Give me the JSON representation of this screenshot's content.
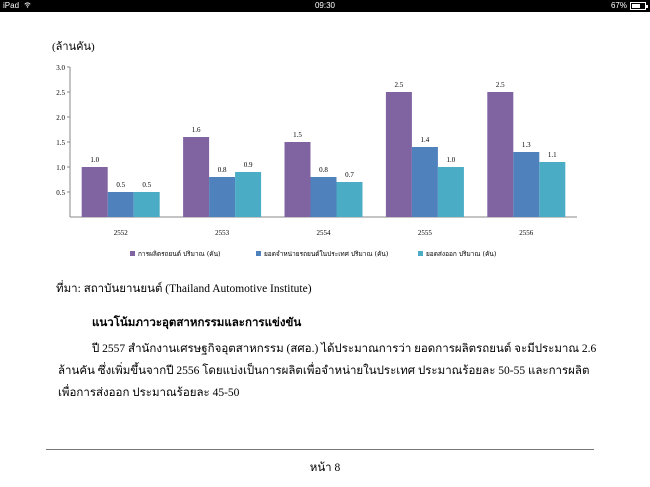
{
  "status_bar": {
    "device": "iPad",
    "time": "09:30",
    "battery": "67%",
    "battery_level": 0.67
  },
  "chart_unit": "(ล้านคัน)",
  "chart_data": {
    "type": "bar",
    "categories": [
      "2552",
      "2553",
      "2554",
      "2555",
      "2556"
    ],
    "series": [
      {
        "name": "การผลิตรถยนต์ ปริมาณ (คัน)",
        "values": [
          1.0,
          1.6,
          1.5,
          2.5,
          2.5
        ],
        "color": "#8064a2"
      },
      {
        "name": "ยอดจำหน่ายรถยนต์ในประเทศ ปริมาณ (คัน)",
        "values": [
          0.5,
          0.8,
          0.8,
          1.4,
          1.3
        ],
        "color": "#4f81bd"
      },
      {
        "name": "ยอดส่งออก ปริมาณ (คัน)",
        "values": [
          0.5,
          0.9,
          0.7,
          1.0,
          1.1
        ],
        "color": "#4bacc6"
      }
    ],
    "y_ticks": [
      "0.5",
      "1.0",
      "1.5",
      "2.0",
      "2.5",
      "3.0"
    ],
    "ylim": [
      0,
      3.0
    ],
    "grid": false,
    "legend_position": "bottom"
  },
  "source_text": "ที่มา: สถาบันยานยนต์ (Thailand Automotive Institute)",
  "section_heading": "แนวโน้มภาวะอุตสาหกรรมและการแข่งขัน",
  "paragraph": "ปี 2557 สำนักงานเศรษฐกิจอุตสาหกรรม (สศอ.) ได้ประมาณการว่า ยอดการผลิตรถยนต์ จะมีประมาณ 2.6 ล้านคัน ซึ่งเพิ่มขึ้นจากปี 2556 โดยแบ่งเป็นการผลิตเพื่อจำหน่ายในประเทศ ประมาณร้อยละ 50-55 และการผลิตเพื่อการส่งออก ประมาณร้อยละ 45-50",
  "page_number": "หน้า 8"
}
